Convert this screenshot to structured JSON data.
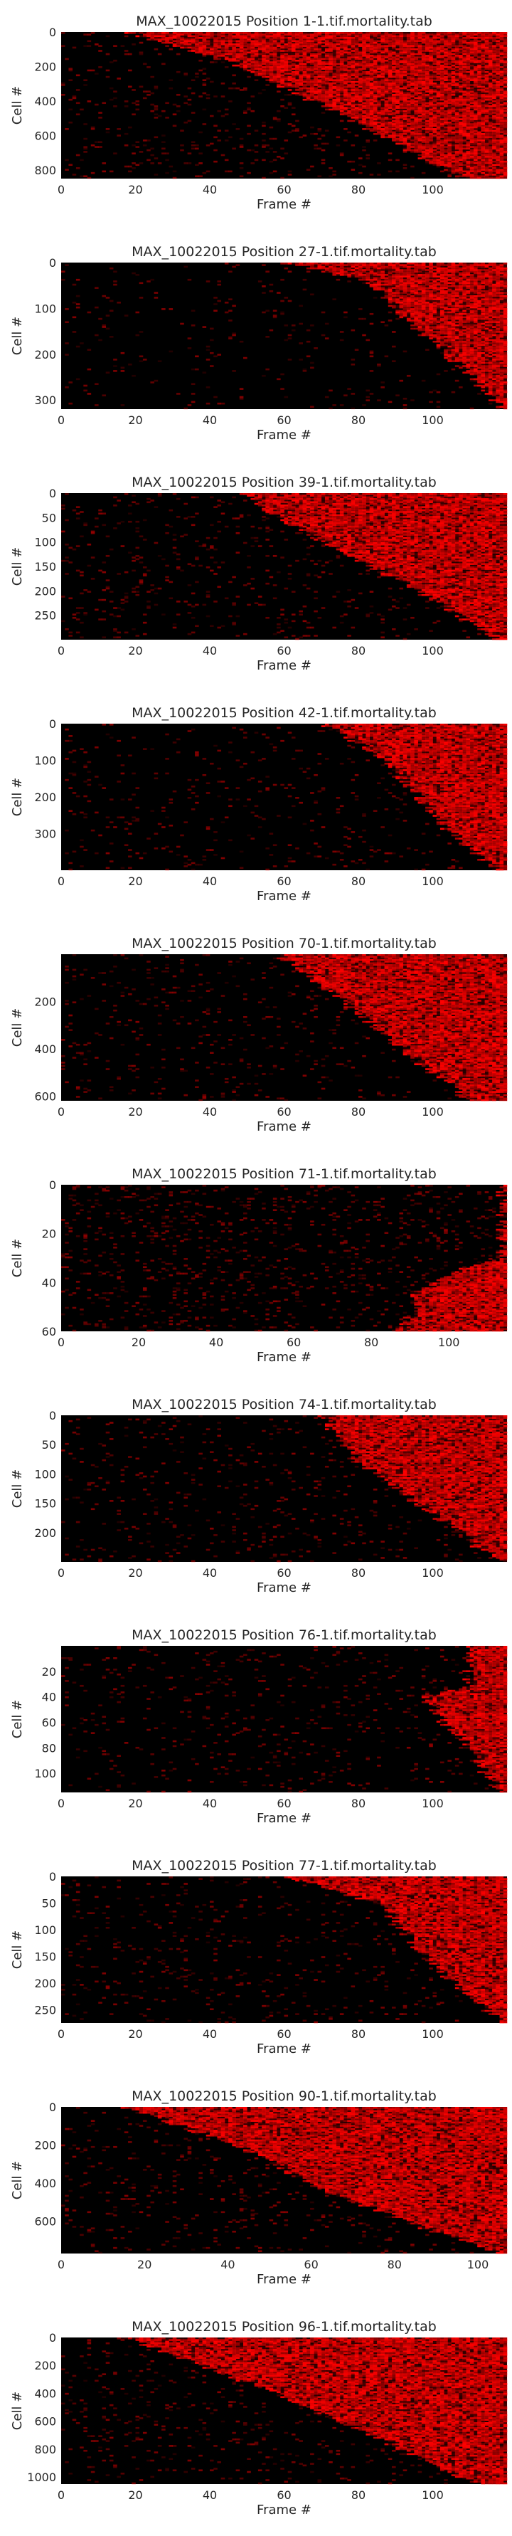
{
  "figure": {
    "background": "#ffffff"
  },
  "style": {
    "heatmap_bg": "#000000",
    "heat_color": "#ff0000",
    "text_color": "#262626"
  },
  "chart_data": [
    {
      "type": "heatmap",
      "title": "MAX_10022015 Position 1-1.tif.mortality.tab",
      "xlabel": "Frame #",
      "ylabel": "Cell #",
      "xlim": [
        0,
        120
      ],
      "ylim": [
        0,
        850
      ],
      "xticks": [
        0,
        20,
        40,
        60,
        80,
        100
      ],
      "yticks": [
        0,
        200,
        400,
        600,
        800
      ],
      "events": [
        {
          "cell": 0,
          "frame": 18
        },
        {
          "cell": 200,
          "frame": 49
        },
        {
          "cell": 400,
          "frame": 68
        },
        {
          "cell": 600,
          "frame": 86
        },
        {
          "cell": 850,
          "frame": 108
        }
      ],
      "noise": 0.07
    },
    {
      "type": "heatmap",
      "title": "MAX_10022015 Position 27-1.tif.mortality.tab",
      "xlabel": "Frame #",
      "ylabel": "Cell #",
      "xlim": [
        0,
        120
      ],
      "ylim": [
        0,
        320
      ],
      "xticks": [
        0,
        20,
        40,
        60,
        80,
        100
      ],
      "yticks": [
        0,
        100,
        200,
        300
      ],
      "events": [
        {
          "cell": 0,
          "frame": 60
        },
        {
          "cell": 40,
          "frame": 83
        },
        {
          "cell": 100,
          "frame": 90
        },
        {
          "cell": 200,
          "frame": 104
        },
        {
          "cell": 320,
          "frame": 119
        }
      ],
      "noise": 0.03
    },
    {
      "type": "heatmap",
      "title": "MAX_10022015 Position 39-1.tif.mortality.tab",
      "xlabel": "Frame #",
      "ylabel": "Cell #",
      "xlim": [
        0,
        120
      ],
      "ylim": [
        0,
        300
      ],
      "xticks": [
        0,
        20,
        40,
        60,
        80,
        100
      ],
      "yticks": [
        0,
        50,
        100,
        150,
        200,
        250
      ],
      "events": [
        {
          "cell": 0,
          "frame": 48
        },
        {
          "cell": 100,
          "frame": 70
        },
        {
          "cell": 200,
          "frame": 96
        },
        {
          "cell": 300,
          "frame": 118
        }
      ],
      "noise": 0.06
    },
    {
      "type": "heatmap",
      "title": "MAX_10022015 Position 42-1.tif.mortality.tab",
      "xlabel": "Frame #",
      "ylabel": "Cell #",
      "xlim": [
        0,
        120
      ],
      "ylim": [
        0,
        400
      ],
      "xticks": [
        0,
        20,
        40,
        60,
        80,
        100
      ],
      "yticks": [
        0,
        100,
        200,
        300
      ],
      "events": [
        {
          "cell": 0,
          "frame": 70
        },
        {
          "cell": 100,
          "frame": 88
        },
        {
          "cell": 200,
          "frame": 96
        },
        {
          "cell": 300,
          "frame": 105
        },
        {
          "cell": 400,
          "frame": 118
        }
      ],
      "noise": 0.04
    },
    {
      "type": "heatmap",
      "title": "MAX_10022015 Position 70-1.tif.mortality.tab",
      "xlabel": "Frame #",
      "ylabel": "Cell #",
      "xlim": [
        0,
        120
      ],
      "ylim": [
        0,
        620
      ],
      "xticks": [
        0,
        20,
        40,
        60,
        80,
        100
      ],
      "yticks": [
        200,
        400,
        600
      ],
      "events": [
        {
          "cell": 0,
          "frame": 58
        },
        {
          "cell": 100,
          "frame": 68
        },
        {
          "cell": 200,
          "frame": 76
        },
        {
          "cell": 400,
          "frame": 92
        },
        {
          "cell": 620,
          "frame": 110
        }
      ],
      "noise": 0.05
    },
    {
      "type": "heatmap",
      "title": "MAX_10022015 Position 71-1.tif.mortality.tab",
      "xlabel": "Frame #",
      "ylabel": "Cell #",
      "xlim": [
        0,
        115
      ],
      "ylim": [
        0,
        60
      ],
      "xticks": [
        0,
        20,
        40,
        60,
        80,
        100
      ],
      "yticks": [
        0,
        20,
        40,
        60
      ],
      "events": [
        {
          "cell": 30,
          "frame": 114
        },
        {
          "cell": 36,
          "frame": 100
        },
        {
          "cell": 45,
          "frame": 92
        },
        {
          "cell": 55,
          "frame": 90
        },
        {
          "cell": 60,
          "frame": 88
        }
      ],
      "noise": 0.09
    },
    {
      "type": "heatmap",
      "title": "MAX_10022015 Position 74-1.tif.mortality.tab",
      "xlabel": "Frame #",
      "ylabel": "Cell #",
      "xlim": [
        0,
        120
      ],
      "ylim": [
        0,
        250
      ],
      "xticks": [
        0,
        20,
        40,
        60,
        80,
        100
      ],
      "yticks": [
        0,
        50,
        100,
        150,
        200
      ],
      "events": [
        {
          "cell": 0,
          "frame": 70
        },
        {
          "cell": 80,
          "frame": 80
        },
        {
          "cell": 150,
          "frame": 96
        },
        {
          "cell": 250,
          "frame": 118
        }
      ],
      "noise": 0.05
    },
    {
      "type": "heatmap",
      "title": "MAX_10022015 Position 76-1.tif.mortality.tab",
      "xlabel": "Frame #",
      "ylabel": "Cell #",
      "xlim": [
        0,
        120
      ],
      "ylim": [
        0,
        115
      ],
      "xticks": [
        0,
        20,
        40,
        60,
        80,
        100
      ],
      "yticks": [
        20,
        40,
        60,
        80,
        100
      ],
      "events": [
        {
          "cell": 30,
          "frame": 110
        },
        {
          "cell": 40,
          "frame": 98
        },
        {
          "cell": 60,
          "frame": 103
        },
        {
          "cell": 80,
          "frame": 110
        },
        {
          "cell": 115,
          "frame": 118
        }
      ],
      "noise": 0.05
    },
    {
      "type": "heatmap",
      "title": "MAX_10022015 Position 77-1.tif.mortality.tab",
      "xlabel": "Frame #",
      "ylabel": "Cell #",
      "xlim": [
        0,
        120
      ],
      "ylim": [
        0,
        275
      ],
      "xticks": [
        0,
        20,
        40,
        60,
        80,
        100
      ],
      "yticks": [
        0,
        50,
        100,
        150,
        200,
        250
      ],
      "events": [
        {
          "cell": 0,
          "frame": 60
        },
        {
          "cell": 50,
          "frame": 85
        },
        {
          "cell": 150,
          "frame": 98
        },
        {
          "cell": 275,
          "frame": 118
        }
      ],
      "noise": 0.05
    },
    {
      "type": "heatmap",
      "title": "MAX_10022015 Position 90-1.tif.mortality.tab",
      "xlabel": "Frame #",
      "ylabel": "Cell #",
      "xlim": [
        0,
        107
      ],
      "ylim": [
        0,
        770
      ],
      "xticks": [
        0,
        20,
        40,
        60,
        80,
        100
      ],
      "yticks": [
        0,
        200,
        400,
        600
      ],
      "events": [
        {
          "cell": 0,
          "frame": 15
        },
        {
          "cell": 200,
          "frame": 42
        },
        {
          "cell": 400,
          "frame": 60
        },
        {
          "cell": 600,
          "frame": 82
        },
        {
          "cell": 770,
          "frame": 106
        }
      ],
      "noise": 0.06
    },
    {
      "type": "heatmap",
      "title": "MAX_10022015 Position 96-1.tif.mortality.tab",
      "xlabel": "Frame #",
      "ylabel": "Cell #",
      "xlim": [
        0,
        120
      ],
      "ylim": [
        0,
        1050
      ],
      "xticks": [
        0,
        20,
        40,
        60,
        80,
        100
      ],
      "yticks": [
        0,
        200,
        400,
        600,
        800,
        1000
      ],
      "events": [
        {
          "cell": 0,
          "frame": 17
        },
        {
          "cell": 200,
          "frame": 38
        },
        {
          "cell": 400,
          "frame": 58
        },
        {
          "cell": 600,
          "frame": 75
        },
        {
          "cell": 800,
          "frame": 92
        },
        {
          "cell": 1050,
          "frame": 112
        }
      ],
      "noise": 0.06
    }
  ]
}
